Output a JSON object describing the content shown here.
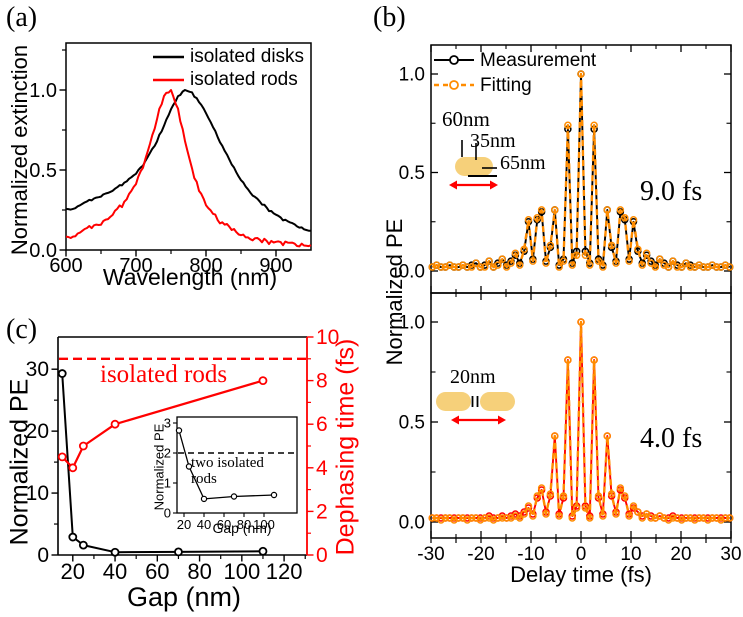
{
  "panel_labels": {
    "a": "(a)",
    "b": "(b)",
    "c": "(c)"
  },
  "colors": {
    "black": "#000000",
    "red": "#ff0000",
    "orange": "#ff8c00",
    "gold": "#f6d07a"
  },
  "chart_data": [
    {
      "id": "panel-a-spectra",
      "type": "line",
      "xlabel": "Wavelength (nm)",
      "ylabel": "Normalized extinction",
      "xlim": [
        600,
        950
      ],
      "ylim": [
        0,
        1.29
      ],
      "xtick_values": [
        600,
        700,
        800,
        900
      ],
      "xtick_labels": [
        "600",
        "700",
        "800",
        "900"
      ],
      "xminor_values": [
        650,
        750,
        850
      ],
      "ytick_values": [
        0,
        0.5,
        1.0
      ],
      "ytick_labels": [
        "0.0",
        "0.5",
        "1.0"
      ],
      "yminor_values": [
        0.25,
        0.75,
        1.25
      ],
      "legend": [
        {
          "label": "isolated disks",
          "color": "#000000"
        },
        {
          "label": "isolated rods",
          "color": "#ff0000"
        }
      ],
      "series": [
        {
          "name": "isolated disks",
          "color": "#000000",
          "x": [
            600,
            610,
            620,
            630,
            640,
            650,
            660,
            670,
            680,
            690,
            700,
            710,
            720,
            730,
            740,
            750,
            760,
            770,
            780,
            790,
            800,
            810,
            820,
            830,
            840,
            850,
            860,
            870,
            880,
            890,
            900,
            910,
            920,
            930,
            940,
            950
          ],
          "y": [
            0.25,
            0.26,
            0.28,
            0.3,
            0.32,
            0.34,
            0.36,
            0.38,
            0.41,
            0.44,
            0.48,
            0.53,
            0.6,
            0.68,
            0.78,
            0.88,
            0.96,
            1.0,
            0.98,
            0.93,
            0.86,
            0.77,
            0.68,
            0.59,
            0.51,
            0.44,
            0.38,
            0.33,
            0.29,
            0.25,
            0.22,
            0.19,
            0.17,
            0.15,
            0.13,
            0.12
          ]
        },
        {
          "name": "isolated rods",
          "color": "#ff0000",
          "x": [
            600,
            610,
            620,
            630,
            640,
            650,
            660,
            670,
            680,
            690,
            700,
            710,
            720,
            730,
            740,
            750,
            760,
            770,
            780,
            790,
            800,
            810,
            820,
            830,
            840,
            850,
            860,
            870,
            880,
            890,
            900,
            910,
            920,
            930,
            940,
            950
          ],
          "y": [
            0.07,
            0.09,
            0.11,
            0.13,
            0.15,
            0.17,
            0.2,
            0.24,
            0.28,
            0.34,
            0.42,
            0.52,
            0.65,
            0.82,
            0.97,
            1.0,
            0.88,
            0.68,
            0.5,
            0.38,
            0.29,
            0.23,
            0.18,
            0.15,
            0.12,
            0.1,
            0.08,
            0.07,
            0.06,
            0.05,
            0.05,
            0.04,
            0.04,
            0.03,
            0.03,
            0.03
          ]
        }
      ]
    },
    {
      "id": "panel-b-top-9fs",
      "type": "line",
      "annotation": "9.0 fs",
      "legend": [
        {
          "label": "Measurement",
          "color": "#000000"
        },
        {
          "label": "Fitting",
          "color": "#ff8c00"
        }
      ],
      "rod_dimension_labels": [
        "60nm",
        "35nm",
        "65nm"
      ],
      "xlim": [
        -30,
        30
      ],
      "ylim": [
        0,
        1.15
      ],
      "ytick_values": [
        0,
        0.5,
        1.0
      ],
      "ytick_labels": [
        "0.0",
        "0.5",
        "1.0"
      ],
      "x_start": -29.75,
      "x_step": 0.875,
      "series": [
        {
          "name": "Measurement",
          "color": "#000000",
          "style": "solid",
          "values": [
            0.02,
            0.03,
            0.02,
            0.02,
            0.03,
            0.02,
            0.02,
            0.03,
            0.02,
            0.03,
            0.04,
            0.02,
            0.03,
            0.05,
            0.02,
            0.04,
            0.06,
            0.03,
            0.05,
            0.08,
            0.04,
            0.1,
            0.25,
            0.06,
            0.26,
            0.3,
            0.05,
            0.12,
            0.31,
            0.03,
            0.06,
            0.72,
            0.04,
            0.1,
            1.0,
            0.1,
            0.04,
            0.72,
            0.06,
            0.03,
            0.31,
            0.12,
            0.05,
            0.3,
            0.26,
            0.06,
            0.25,
            0.1,
            0.04,
            0.08,
            0.05,
            0.03,
            0.06,
            0.04,
            0.02,
            0.05,
            0.03,
            0.02,
            0.04,
            0.03,
            0.02,
            0.03,
            0.02,
            0.02,
            0.03,
            0.02,
            0.02,
            0.03,
            0.02
          ]
        },
        {
          "name": "Fitting",
          "color": "#ff8c00",
          "style": "dashed",
          "values": [
            0.02,
            0.03,
            0.02,
            0.02,
            0.03,
            0.02,
            0.02,
            0.03,
            0.02,
            0.02,
            0.04,
            0.02,
            0.02,
            0.05,
            0.02,
            0.03,
            0.06,
            0.02,
            0.04,
            0.09,
            0.03,
            0.11,
            0.26,
            0.05,
            0.27,
            0.31,
            0.04,
            0.13,
            0.31,
            0.02,
            0.05,
            0.74,
            0.03,
            0.08,
            1.0,
            0.08,
            0.03,
            0.74,
            0.05,
            0.02,
            0.31,
            0.13,
            0.04,
            0.31,
            0.27,
            0.05,
            0.26,
            0.11,
            0.03,
            0.09,
            0.04,
            0.02,
            0.06,
            0.03,
            0.02,
            0.05,
            0.02,
            0.02,
            0.04,
            0.02,
            0.02,
            0.03,
            0.02,
            0.02,
            0.03,
            0.02,
            0.02,
            0.03,
            0.02
          ]
        }
      ]
    },
    {
      "id": "panel-b-bottom-4fs",
      "type": "line",
      "annotation": "4.0 fs",
      "rod_dimension_labels": [
        "20nm"
      ],
      "xlabel": "Delay time (fs)",
      "ylabel": "Normalized PE",
      "xlim": [
        -30,
        30
      ],
      "ylim": [
        0,
        1.15
      ],
      "xtick_values": [
        -30,
        -20,
        -10,
        0,
        10,
        20,
        30
      ],
      "xtick_labels": [
        "-30",
        "-20",
        "-10",
        "0",
        "10",
        "20",
        "30"
      ],
      "xminor_values": [
        -25,
        -15,
        -5,
        5,
        15,
        25
      ],
      "ytick_values": [
        0,
        0.5,
        1.0
      ],
      "ytick_labels": [
        "0.0",
        "0.5",
        "1.0"
      ],
      "x_start": -29.75,
      "x_step": 0.875,
      "series": [
        {
          "name": "Measurement",
          "color": "#ff0000",
          "style": "solid",
          "values": [
            0.02,
            0.02,
            0.02,
            0.02,
            0.02,
            0.02,
            0.02,
            0.02,
            0.02,
            0.02,
            0.02,
            0.02,
            0.02,
            0.03,
            0.02,
            0.02,
            0.03,
            0.02,
            0.03,
            0.04,
            0.03,
            0.05,
            0.07,
            0.04,
            0.12,
            0.16,
            0.05,
            0.13,
            0.43,
            0.04,
            0.12,
            0.81,
            0.03,
            0.08,
            1.0,
            0.08,
            0.03,
            0.81,
            0.12,
            0.04,
            0.43,
            0.13,
            0.05,
            0.16,
            0.12,
            0.04,
            0.07,
            0.05,
            0.03,
            0.04,
            0.03,
            0.02,
            0.03,
            0.02,
            0.02,
            0.03,
            0.02,
            0.02,
            0.02,
            0.02,
            0.02,
            0.02,
            0.02,
            0.02,
            0.02,
            0.02,
            0.02,
            0.02,
            0.02
          ]
        },
        {
          "name": "Fitting",
          "color": "#ff8c00",
          "style": "dashed",
          "values": [
            0.02,
            0.02,
            0.01,
            0.02,
            0.02,
            0.01,
            0.02,
            0.02,
            0.01,
            0.02,
            0.02,
            0.01,
            0.02,
            0.02,
            0.01,
            0.02,
            0.02,
            0.02,
            0.02,
            0.03,
            0.02,
            0.04,
            0.08,
            0.03,
            0.13,
            0.17,
            0.04,
            0.14,
            0.43,
            0.03,
            0.13,
            0.81,
            0.02,
            0.07,
            1.0,
            0.07,
            0.02,
            0.81,
            0.13,
            0.03,
            0.43,
            0.14,
            0.04,
            0.17,
            0.13,
            0.03,
            0.08,
            0.05,
            0.02,
            0.04,
            0.02,
            0.02,
            0.03,
            0.02,
            0.01,
            0.02,
            0.02,
            0.01,
            0.02,
            0.02,
            0.01,
            0.02,
            0.02,
            0.01,
            0.02,
            0.02,
            0.01,
            0.02,
            0.02
          ]
        }
      ]
    },
    {
      "id": "panel-c-gap-dependence",
      "type": "line",
      "xlabel": "Gap (nm)",
      "ylabel_left": "Normalized PE",
      "ylabel_right": "Dephasing time (fs)",
      "xlim": [
        13,
        131
      ],
      "ylim_left": [
        0,
        35.2
      ],
      "ylim_right": [
        0,
        10
      ],
      "xtick_values": [
        20,
        40,
        60,
        80,
        100,
        120
      ],
      "xtick_labels": [
        "20",
        "40",
        "60",
        "80",
        "100",
        "120"
      ],
      "xminor_values": [
        30,
        50,
        70,
        90,
        110,
        130
      ],
      "ytick_left_values": [
        0,
        10,
        20,
        30
      ],
      "ytick_left_labels": [
        "0",
        "10",
        "20",
        "30"
      ],
      "yminor_left_values": [
        5,
        15,
        25
      ],
      "ytick_right_values": [
        0,
        2,
        4,
        6,
        8,
        10
      ],
      "ytick_right_labels": [
        "0",
        "2",
        "4",
        "6",
        "8",
        "10"
      ],
      "yminor_right_values": [
        1,
        3,
        5,
        7,
        9
      ],
      "hline": {
        "value": 9.0,
        "axis": "right",
        "color": "#ff0000",
        "label": "isolated rods"
      },
      "series": [
        {
          "name": "Normalized PE",
          "axis": "left",
          "color": "#000000",
          "x": [
            15,
            20,
            25,
            40,
            70,
            110
          ],
          "y": [
            29.3,
            2.9,
            1.6,
            0.45,
            0.5,
            0.6
          ]
        },
        {
          "name": "Dephasing time",
          "axis": "right",
          "color": "#ff0000",
          "x": [
            15,
            20,
            25,
            40,
            110
          ],
          "y": [
            4.5,
            4.0,
            5.0,
            6.0,
            8.0
          ]
        }
      ]
    },
    {
      "id": "panel-c-inset",
      "type": "line",
      "xlabel": "Gap (nm)",
      "ylabel": "Normalized PE",
      "xlim": [
        13,
        133
      ],
      "ylim": [
        0,
        3.2
      ],
      "xtick_values": [
        20,
        40,
        60,
        80,
        100
      ],
      "xtick_labels": [
        "20",
        "40",
        "60",
        "80",
        "100"
      ],
      "ytick_values": [
        0,
        1,
        2,
        3
      ],
      "ytick_labels": [
        "0",
        "1",
        "2",
        "3"
      ],
      "hline": {
        "value": 2.0,
        "color": "#000000",
        "label": "two isolated rods"
      },
      "series": [
        {
          "name": "Normalized PE",
          "color": "#000000",
          "x": [
            15,
            25,
            40,
            70,
            110
          ],
          "y": [
            2.75,
            1.55,
            0.47,
            0.55,
            0.6
          ]
        }
      ]
    }
  ]
}
